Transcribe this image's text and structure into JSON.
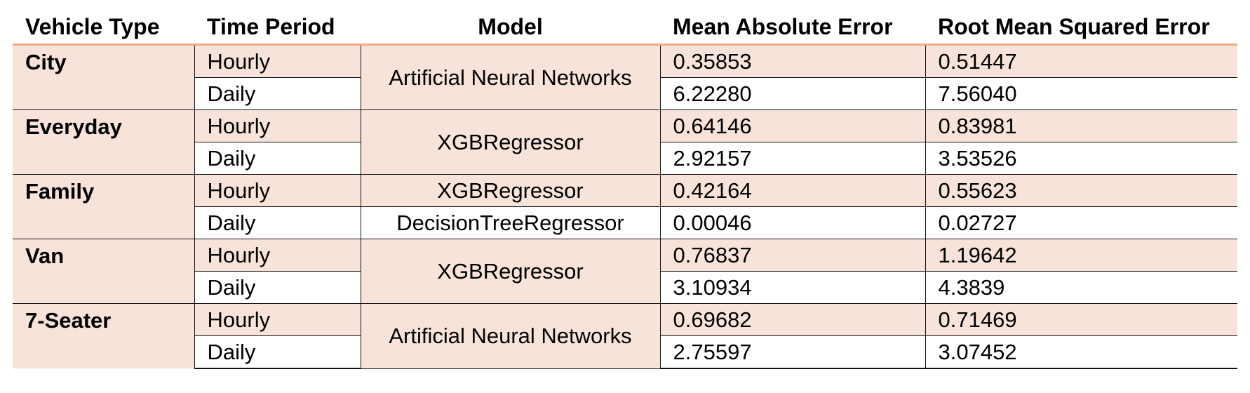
{
  "headers": {
    "vehicle_type": "Vehicle Type",
    "time_period": "Time Period",
    "model": "Model",
    "mae": "Mean Absolute Error",
    "rmse": "Root Mean Squared Error"
  },
  "rows": [
    {
      "vehicle": "City",
      "hourly": {
        "period": "Hourly",
        "model": "Artificial Neural Networks",
        "mae": "0.35853",
        "rmse": "0.51447"
      },
      "daily": {
        "period": "Daily",
        "model": "Artificial Neural Networks",
        "mae": "6.22280",
        "rmse": "7.56040"
      }
    },
    {
      "vehicle": "Everyday",
      "hourly": {
        "period": "Hourly",
        "model": "XGBRegressor",
        "mae": "0.64146",
        "rmse": "0.83981"
      },
      "daily": {
        "period": "Daily",
        "model": "XGBRegressor",
        "mae": "2.92157",
        "rmse": "3.53526"
      }
    },
    {
      "vehicle": "Family",
      "hourly": {
        "period": "Hourly",
        "model": "XGBRegressor",
        "mae": "0.42164",
        "rmse": "0.55623"
      },
      "daily": {
        "period": "Daily",
        "model": "DecisionTreeRegressor",
        "mae": "0.00046",
        "rmse": "0.02727"
      }
    },
    {
      "vehicle": "Van",
      "hourly": {
        "period": "Hourly",
        "model": "XGBRegressor",
        "mae": "0.76837",
        "rmse": "1.19642"
      },
      "daily": {
        "period": "Daily",
        "model": "XGBRegressor",
        "mae": "3.10934",
        "rmse": "4.3839"
      }
    },
    {
      "vehicle": "7-Seater",
      "hourly": {
        "period": "Hourly",
        "model": "Artificial Neural Networks",
        "mae": "0.69682",
        "rmse": "0.71469"
      },
      "daily": {
        "period": "Daily",
        "model": "Artificial Neural Networks",
        "mae": "2.75597",
        "rmse": "3.07452"
      }
    }
  ],
  "colors": {
    "accent_border": "#f4a882",
    "band_fill": "#f7e3da"
  }
}
